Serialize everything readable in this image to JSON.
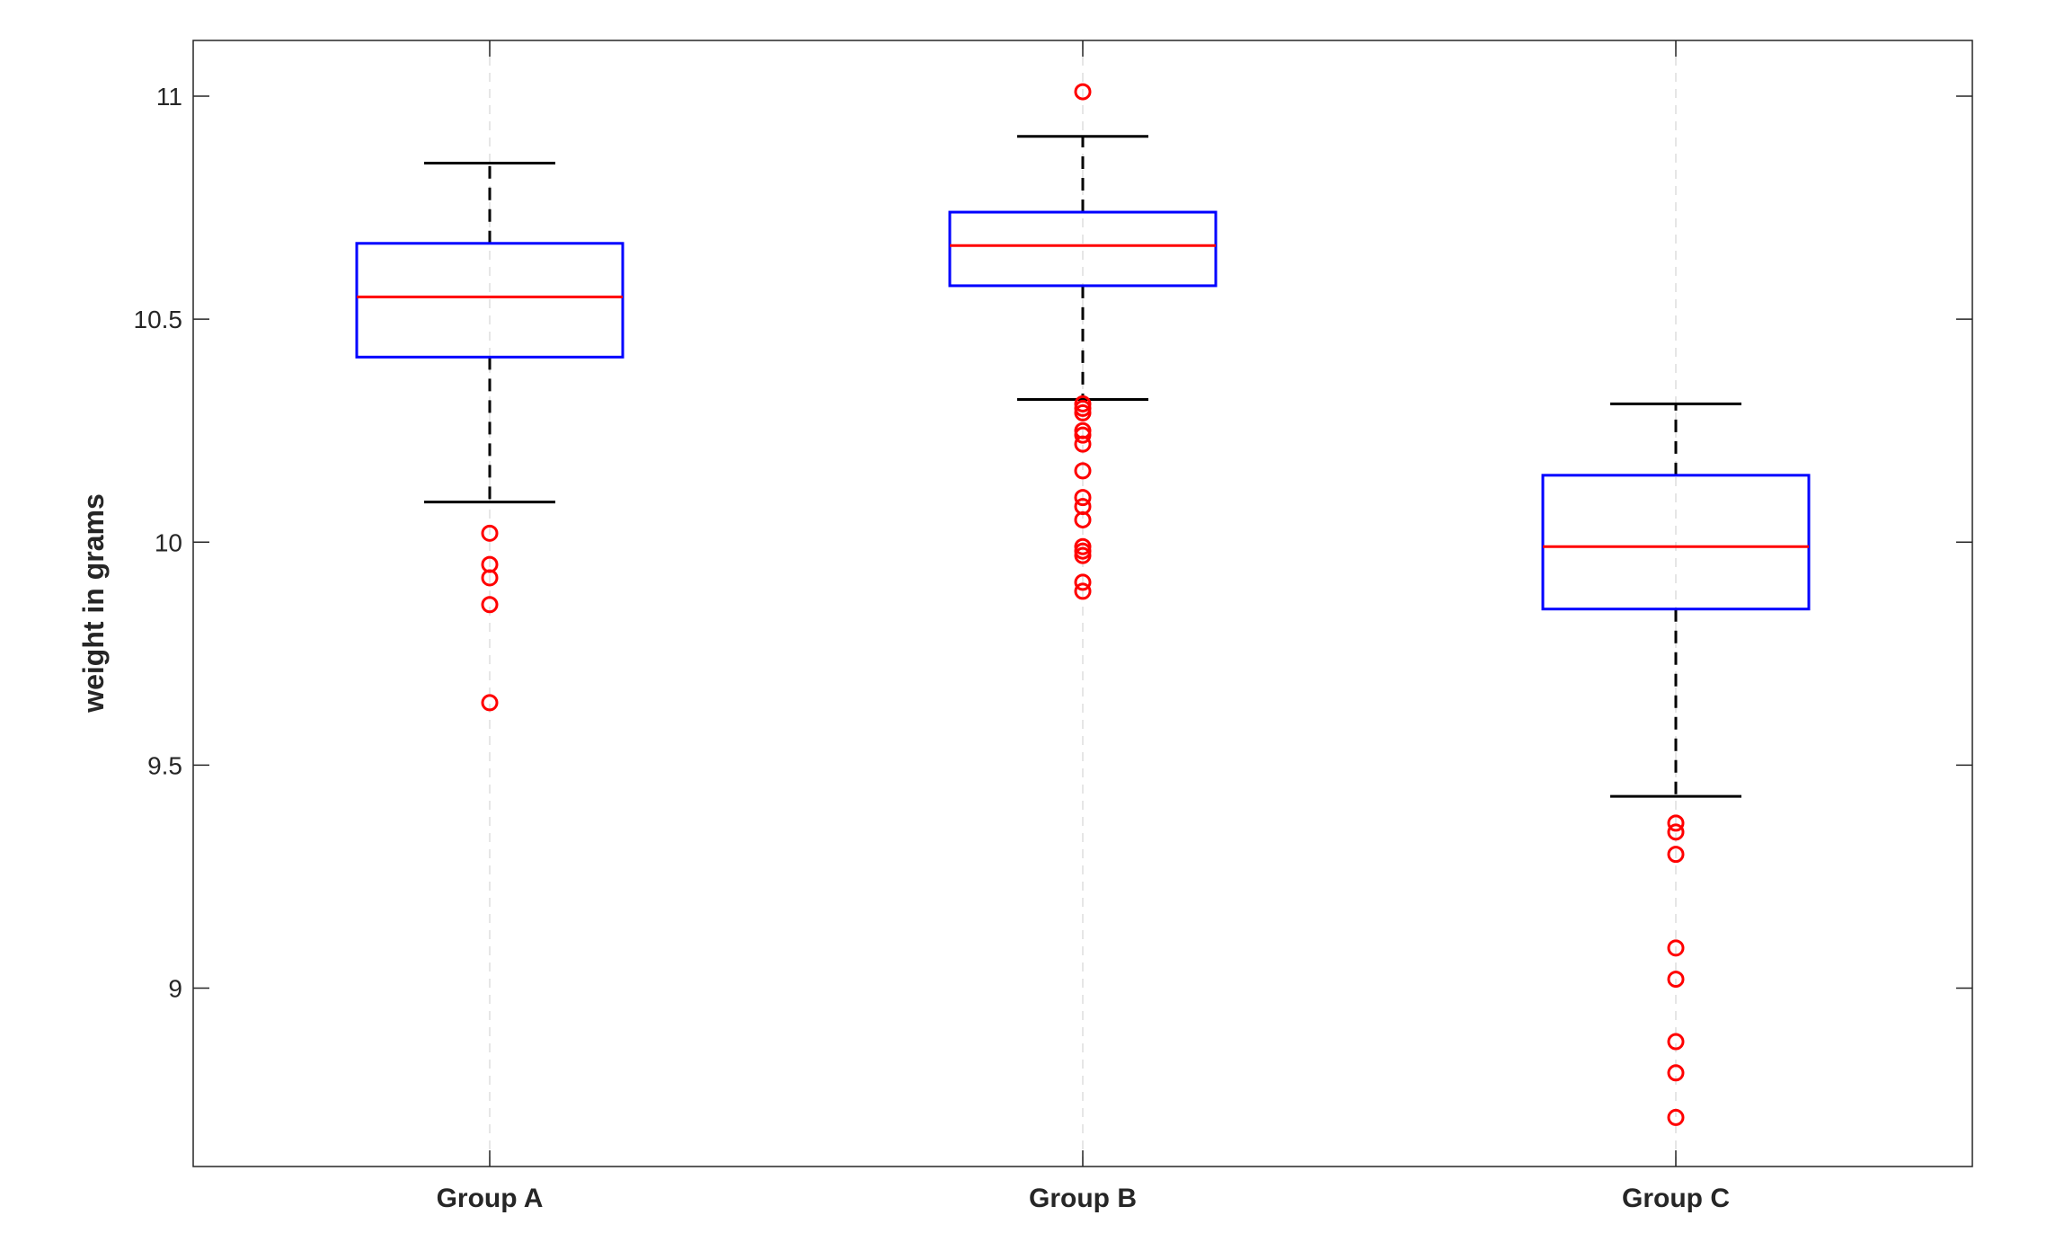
{
  "chart_data": {
    "type": "box",
    "title": "",
    "xlabel": "",
    "ylabel": "weight in grams",
    "ylim": [
      8.6,
      11.125
    ],
    "yticks": [
      9,
      9.5,
      10,
      10.5,
      11
    ],
    "ytick_labels": [
      "9",
      "9.5",
      "10",
      "10.5",
      "11"
    ],
    "grid": "vertical dashed at categories",
    "categories": [
      "Group A",
      "Group B",
      "Group C"
    ],
    "boxes": [
      {
        "category": "Group A",
        "whisker_low": 10.09,
        "q1": 10.415,
        "median": 10.55,
        "q3": 10.67,
        "whisker_high": 10.85,
        "outliers": [
          10.02,
          9.95,
          9.92,
          9.86,
          9.64
        ]
      },
      {
        "category": "Group B",
        "whisker_low": 10.32,
        "q1": 10.575,
        "median": 10.665,
        "q3": 10.74,
        "whisker_high": 10.91,
        "outliers": [
          11.01,
          10.31,
          10.3,
          10.29,
          10.25,
          10.24,
          10.22,
          10.16,
          10.1,
          10.08,
          10.05,
          9.99,
          9.98,
          9.97,
          9.91,
          9.89
        ]
      },
      {
        "category": "Group C",
        "whisker_low": 9.43,
        "q1": 9.85,
        "median": 9.99,
        "q3": 10.15,
        "whisker_high": 10.31,
        "outliers": [
          9.37,
          9.35,
          9.3,
          9.09,
          9.02,
          8.88,
          8.81,
          8.71
        ]
      }
    ],
    "colors": {
      "box": "#0000ff",
      "median": "#ff0000",
      "whisker": "#000000",
      "outlier": "#ff0000",
      "grid": "#e6e6e6",
      "axes": "#262626"
    }
  }
}
